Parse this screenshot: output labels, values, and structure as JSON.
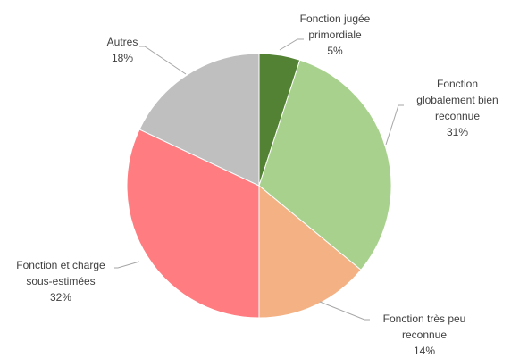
{
  "chart_data": {
    "type": "pie",
    "categories": [
      [
        "Fonction jugée",
        "primordiale"
      ],
      [
        "Fonction",
        "globalement bien",
        "reconnue"
      ],
      [
        "Fonction très peu",
        "reconnue"
      ],
      [
        "Fonction et charge",
        "sous-estimées"
      ],
      [
        "Autres"
      ]
    ],
    "values": [
      5,
      31,
      14,
      32,
      18
    ],
    "value_labels": [
      "5%",
      "31%",
      "14%",
      "32%",
      "18%"
    ],
    "colors": [
      "#548235",
      "#a9d18e",
      "#f4b183",
      "#ff7c80",
      "#bfbfbf"
    ]
  }
}
